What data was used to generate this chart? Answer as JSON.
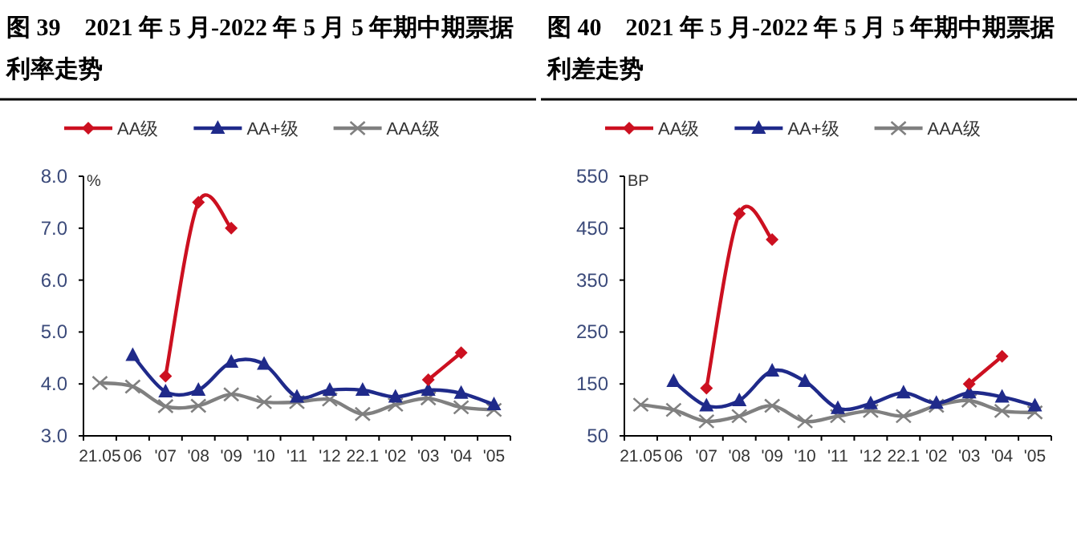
{
  "chart_data": [
    {
      "type": "line",
      "title": "图 39　2021 年 5 月-2022 年 5 月 5 年期中期票据利率走势",
      "ylabel": "%",
      "categories": [
        "21.05",
        "06",
        "'07",
        "'08",
        "'09",
        "'10",
        "'11",
        "'12",
        "22.1",
        "'02",
        "'03",
        "'04",
        "'05"
      ],
      "series": [
        {
          "name": "AA级",
          "color": "#cc1020",
          "marker": "diamond",
          "values": [
            null,
            null,
            4.15,
            7.5,
            7.0,
            null,
            null,
            null,
            null,
            null,
            4.08,
            4.6,
            null
          ]
        },
        {
          "name": "AA+级",
          "color": "#1f2a8a",
          "marker": "triangle",
          "values": [
            null,
            4.55,
            3.85,
            3.88,
            4.42,
            4.38,
            3.75,
            3.88,
            3.88,
            3.75,
            3.88,
            3.82,
            3.6
          ]
        },
        {
          "name": "AAA级",
          "color": "#808080",
          "marker": "cross",
          "values": [
            4.02,
            3.95,
            3.57,
            3.58,
            3.8,
            3.65,
            3.65,
            3.7,
            3.42,
            3.6,
            3.72,
            3.55,
            3.5
          ]
        }
      ],
      "ylim": [
        3,
        8
      ],
      "yticks": [
        {
          "value": 3,
          "label": "3.0"
        },
        {
          "value": 4,
          "label": "4.0"
        },
        {
          "value": 5,
          "label": "5.0"
        },
        {
          "value": 6,
          "label": "6.0"
        },
        {
          "value": 7,
          "label": "7.0"
        },
        {
          "value": 8,
          "label": "8.0"
        }
      ],
      "legend": "top",
      "grid": false
    },
    {
      "type": "line",
      "title": "图 40　2021 年 5 月-2022 年 5 月 5 年期中期票据利差走势",
      "ylabel": "BP",
      "categories": [
        "21.05",
        "06",
        "'07",
        "'08",
        "'09",
        "'10",
        "'11",
        "'12",
        "22.1",
        "'02",
        "'03",
        "'04",
        "'05"
      ],
      "series": [
        {
          "name": "AA级",
          "color": "#cc1020",
          "marker": "diamond",
          "values": [
            null,
            null,
            142,
            478,
            428,
            null,
            null,
            null,
            null,
            null,
            150,
            203,
            null
          ]
        },
        {
          "name": "AA+级",
          "color": "#1f2a8a",
          "marker": "triangle",
          "values": [
            null,
            155,
            108,
            118,
            175,
            155,
            103,
            112,
            133,
            113,
            133,
            125,
            108
          ]
        },
        {
          "name": "AAA级",
          "color": "#808080",
          "marker": "cross",
          "values": [
            110,
            100,
            78,
            88,
            108,
            78,
            88,
            98,
            88,
            108,
            118,
            98,
            95
          ]
        }
      ],
      "ylim": [
        50,
        550
      ],
      "yticks": [
        50,
        150,
        250,
        350,
        450,
        550
      ],
      "legend": "top",
      "grid": false
    }
  ]
}
